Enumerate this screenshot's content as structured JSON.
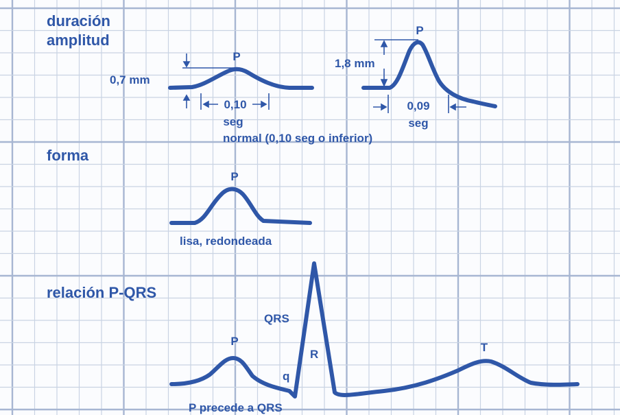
{
  "colors": {
    "ink": "#2f57a8",
    "grid_minor": "#c9d3e3",
    "grid_major": "#a7b6d2",
    "paper": "#fbfcfe"
  },
  "section_duration": {
    "heading_line1": "duración",
    "heading_line2": "amplitud",
    "left_wave": {
      "peak_label": "P",
      "amplitude_label": "0,7 mm",
      "duration_label": "0,10",
      "duration_unit": "seg"
    },
    "right_wave": {
      "peak_label": "P",
      "amplitude_label": "1,8 mm",
      "duration_label": "0,09",
      "duration_unit": "seg"
    },
    "caption": "normal (0,10 seg o inferior)"
  },
  "section_shape": {
    "heading": "forma",
    "peak_label": "P",
    "caption": "lisa, redondeada"
  },
  "section_relation": {
    "heading": "relación P-QRS",
    "p_label": "P",
    "qrs_label": "QRS",
    "q_label": "q",
    "r_label": "R",
    "t_label": "T",
    "caption": "P precede a QRS"
  }
}
